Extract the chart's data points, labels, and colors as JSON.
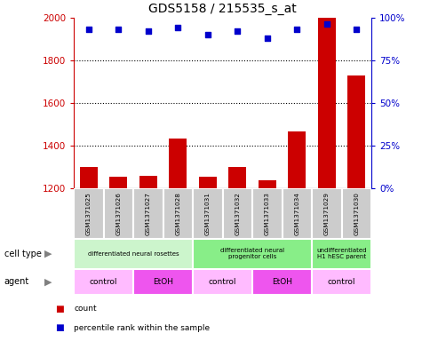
{
  "title": "GDS5158 / 215535_s_at",
  "samples": [
    "GSM1371025",
    "GSM1371026",
    "GSM1371027",
    "GSM1371028",
    "GSM1371031",
    "GSM1371032",
    "GSM1371033",
    "GSM1371034",
    "GSM1371029",
    "GSM1371030"
  ],
  "counts": [
    1300,
    1255,
    1260,
    1435,
    1255,
    1300,
    1240,
    1465,
    2000,
    1730
  ],
  "percentile_ranks": [
    93,
    93,
    92,
    94,
    90,
    92,
    88,
    93,
    96,
    93
  ],
  "ylim_left": [
    1200,
    2000
  ],
  "ylim_right": [
    0,
    100
  ],
  "yticks_left": [
    1200,
    1400,
    1600,
    1800,
    2000
  ],
  "yticks_right": [
    0,
    25,
    50,
    75,
    100
  ],
  "cell_type_groups": [
    {
      "label": "differentiated neural rosettes",
      "start": 0,
      "end": 4,
      "color": "#ccf5cc"
    },
    {
      "label": "differentiated neural\nprogenitor cells",
      "start": 4,
      "end": 8,
      "color": "#88ee88"
    },
    {
      "label": "undifferentiated\nH1 hESC parent",
      "start": 8,
      "end": 10,
      "color": "#88ee88"
    }
  ],
  "agent_groups": [
    {
      "label": "control",
      "start": 0,
      "end": 2,
      "color": "#ffbbff"
    },
    {
      "label": "EtOH",
      "start": 2,
      "end": 4,
      "color": "#ee55ee"
    },
    {
      "label": "control",
      "start": 4,
      "end": 6,
      "color": "#ffbbff"
    },
    {
      "label": "EtOH",
      "start": 6,
      "end": 8,
      "color": "#ee55ee"
    },
    {
      "label": "control",
      "start": 8,
      "end": 10,
      "color": "#ffbbff"
    }
  ],
  "bar_color": "#cc0000",
  "dot_color": "#0000cc",
  "bar_width": 0.6,
  "legend_items": [
    {
      "label": "count",
      "color": "#cc0000"
    },
    {
      "label": "percentile rank within the sample",
      "color": "#0000cc"
    }
  ],
  "cell_type_label": "cell type",
  "agent_label": "agent",
  "tick_color_left": "#cc0000",
  "tick_color_right": "#0000cc",
  "sample_box_color": "#cccccc",
  "sample_box_edge": "#ffffff"
}
